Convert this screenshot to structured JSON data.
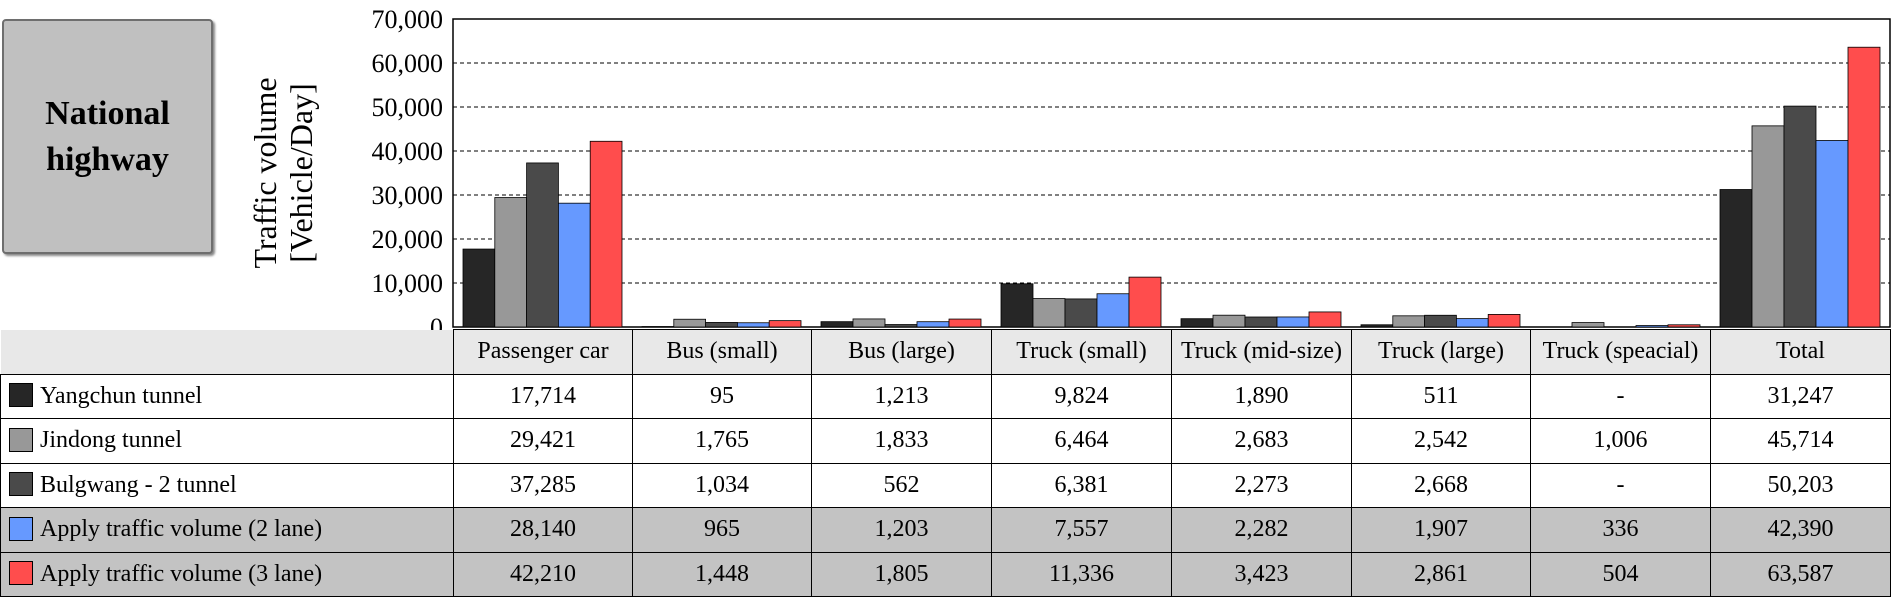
{
  "side_label": "National highway",
  "chart_data": {
    "type": "bar",
    "ylabel": "Traffic volume [Vehicle/Day]",
    "ylim": [
      0,
      70000
    ],
    "yticks": [
      "0",
      "10,000",
      "20,000",
      "30,000",
      "40,000",
      "50,000",
      "60,000",
      "70,000"
    ],
    "ytick_values": [
      0,
      10000,
      20000,
      30000,
      40000,
      50000,
      60000,
      70000
    ],
    "grid": "dashed-horizontal",
    "legend": "table-below",
    "categories": [
      "Passenger car",
      "Bus (small)",
      "Bus (large)",
      "Truck (small)",
      "Truck (mid-size)",
      "Truck (large)",
      "Truck (speacial)",
      "Total"
    ],
    "series": [
      {
        "name": "Yangchun tunnel",
        "color": "#262626",
        "values": [
          17714,
          95,
          1213,
          9824,
          1890,
          511,
          null,
          31247
        ],
        "labels": [
          "17,714",
          "95",
          "1,213",
          "9,824",
          "1,890",
          "511",
          "-",
          "31,247"
        ]
      },
      {
        "name": "Jindong tunnel",
        "color": "#989898",
        "values": [
          29421,
          1765,
          1833,
          6464,
          2683,
          2542,
          1006,
          45714
        ],
        "labels": [
          "29,421",
          "1,765",
          "1,833",
          "6,464",
          "2,683",
          "2,542",
          "1,006",
          "45,714"
        ]
      },
      {
        "name": "Bulgwang - 2 tunnel",
        "color": "#4a4a4a",
        "values": [
          37285,
          1034,
          562,
          6381,
          2273,
          2668,
          null,
          50203
        ],
        "labels": [
          "37,285",
          "1,034",
          "562",
          "6,381",
          "2,273",
          "2,668",
          "-",
          "50,203"
        ]
      },
      {
        "name": "Apply traffic volume (2 lane)",
        "color": "#6699ff",
        "values": [
          28140,
          965,
          1203,
          7557,
          2282,
          1907,
          336,
          42390
        ],
        "labels": [
          "28,140",
          "965",
          "1,203",
          "7,557",
          "2,282",
          "1,907",
          "336",
          "42,390"
        ]
      },
      {
        "name": "Apply traffic volume (3 lane)",
        "color": "#ff4d4d",
        "values": [
          42210,
          1448,
          1805,
          11336,
          3423,
          2861,
          504,
          63587
        ],
        "labels": [
          "42,210",
          "1,448",
          "1,805",
          "11,336",
          "3,423",
          "2,861",
          "504",
          "63,587"
        ]
      }
    ]
  }
}
